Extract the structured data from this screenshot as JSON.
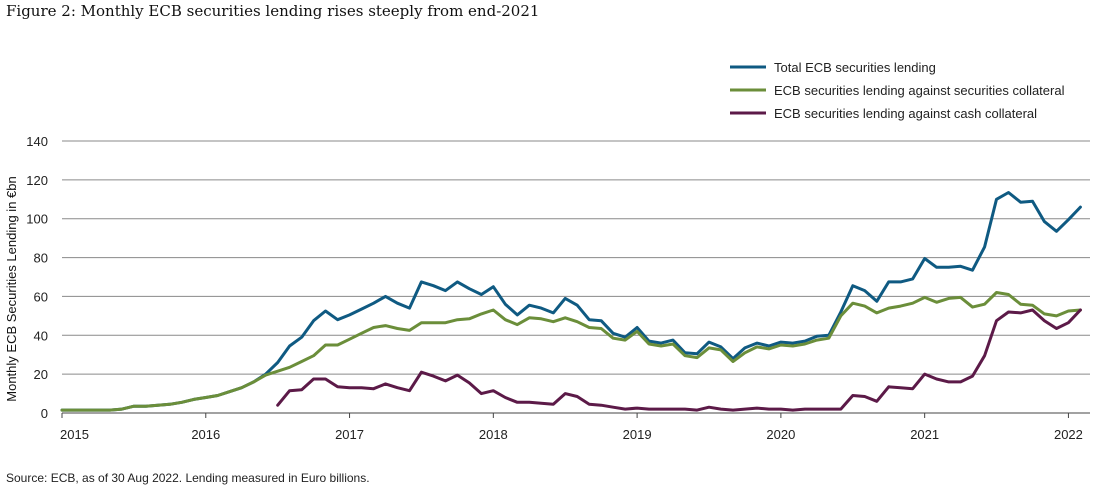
{
  "title": "Figure 2: Monthly ECB securities lending rises steeply from end-2021",
  "source": "Source: ECB, as of 30 Aug 2022. Lending measured in Euro billions.",
  "chart_data": {
    "type": "line",
    "ylabel": "Monthly ECB Securities Lending in €bn",
    "xlabel": "",
    "ylim": [
      0,
      140
    ],
    "yticks": [
      0,
      20,
      40,
      60,
      80,
      100,
      120,
      140
    ],
    "xlim": [
      2015,
      2022.15
    ],
    "xticks": [
      {
        "value": 2015,
        "label": "2015"
      },
      {
        "value": 2016,
        "label": "2016"
      },
      {
        "value": 2017,
        "label": "2017"
      },
      {
        "value": 2018,
        "label": "2018"
      },
      {
        "value": 2019,
        "label": "2019"
      },
      {
        "value": 2020,
        "label": "2020"
      },
      {
        "value": 2021,
        "label": "2021"
      },
      {
        "value": 2022,
        "label": "2022"
      }
    ],
    "grid": "horizontal",
    "legend_position": "top-right",
    "series": [
      {
        "name": "Total ECB securities lending",
        "color": "#0f5a82",
        "points": [
          [
            2015.0,
            1.5
          ],
          [
            2015.083,
            1.5
          ],
          [
            2015.167,
            1.5
          ],
          [
            2015.25,
            1.5
          ],
          [
            2015.333,
            1.5
          ],
          [
            2015.417,
            2
          ],
          [
            2015.5,
            3.5
          ],
          [
            2015.583,
            3.5
          ],
          [
            2015.667,
            4
          ],
          [
            2015.75,
            4.5
          ],
          [
            2015.833,
            5.5
          ],
          [
            2015.917,
            7
          ],
          [
            2016.0,
            8
          ],
          [
            2016.083,
            9
          ],
          [
            2016.167,
            11
          ],
          [
            2016.25,
            13
          ],
          [
            2016.333,
            16
          ],
          [
            2016.417,
            20
          ],
          [
            2016.5,
            26
          ],
          [
            2016.583,
            34.5
          ],
          [
            2016.667,
            39
          ],
          [
            2016.75,
            47.5
          ],
          [
            2016.833,
            52.5
          ],
          [
            2016.917,
            48
          ],
          [
            2017.0,
            50.5
          ],
          [
            2017.083,
            53.5
          ],
          [
            2017.167,
            56.5
          ],
          [
            2017.25,
            60
          ],
          [
            2017.333,
            56.5
          ],
          [
            2017.417,
            54
          ],
          [
            2017.5,
            67.5
          ],
          [
            2017.583,
            65.5
          ],
          [
            2017.667,
            63
          ],
          [
            2017.75,
            67.5
          ],
          [
            2017.833,
            64
          ],
          [
            2017.917,
            61
          ],
          [
            2018.0,
            65
          ],
          [
            2018.083,
            56
          ],
          [
            2018.167,
            50.5
          ],
          [
            2018.25,
            55.5
          ],
          [
            2018.333,
            54
          ],
          [
            2018.417,
            51.5
          ],
          [
            2018.5,
            59
          ],
          [
            2018.583,
            55.5
          ],
          [
            2018.667,
            48
          ],
          [
            2018.75,
            47.5
          ],
          [
            2018.833,
            41
          ],
          [
            2018.917,
            39
          ],
          [
            2019.0,
            44
          ],
          [
            2019.083,
            37
          ],
          [
            2019.167,
            36
          ],
          [
            2019.25,
            37.5
          ],
          [
            2019.333,
            31
          ],
          [
            2019.417,
            30.5
          ],
          [
            2019.5,
            36.5
          ],
          [
            2019.583,
            34
          ],
          [
            2019.667,
            28
          ],
          [
            2019.75,
            33.5
          ],
          [
            2019.833,
            36
          ],
          [
            2019.917,
            34.5
          ],
          [
            2020.0,
            36.5
          ],
          [
            2020.083,
            36
          ],
          [
            2020.167,
            37
          ],
          [
            2020.25,
            39.5
          ],
          [
            2020.333,
            40
          ],
          [
            2020.417,
            52
          ],
          [
            2020.5,
            65.5
          ],
          [
            2020.583,
            63
          ],
          [
            2020.667,
            57.5
          ],
          [
            2020.75,
            67.5
          ],
          [
            2020.833,
            67.5
          ],
          [
            2020.917,
            69
          ],
          [
            2021.0,
            79.5
          ],
          [
            2021.083,
            75
          ],
          [
            2021.167,
            75
          ],
          [
            2021.25,
            75.5
          ],
          [
            2021.333,
            73.5
          ],
          [
            2021.417,
            85.5
          ],
          [
            2021.5,
            110
          ],
          [
            2021.583,
            113.5
          ],
          [
            2021.667,
            108.5
          ],
          [
            2021.75,
            109
          ],
          [
            2021.833,
            98.5
          ],
          [
            2021.917,
            93.5
          ],
          [
            2022.0,
            99.5
          ],
          [
            2022.083,
            106
          ]
        ]
      },
      {
        "name": "ECB securities lending against securities collateral",
        "color": "#6b8e3a",
        "points": [
          [
            2015.0,
            1.5
          ],
          [
            2015.083,
            1.5
          ],
          [
            2015.167,
            1.5
          ],
          [
            2015.25,
            1.5
          ],
          [
            2015.333,
            1.5
          ],
          [
            2015.417,
            2
          ],
          [
            2015.5,
            3.5
          ],
          [
            2015.583,
            3.5
          ],
          [
            2015.667,
            4
          ],
          [
            2015.75,
            4.5
          ],
          [
            2015.833,
            5.5
          ],
          [
            2015.917,
            7
          ],
          [
            2016.0,
            8
          ],
          [
            2016.083,
            9
          ],
          [
            2016.167,
            11
          ],
          [
            2016.25,
            13
          ],
          [
            2016.333,
            16
          ],
          [
            2016.417,
            19.5
          ],
          [
            2016.5,
            21.5
          ],
          [
            2016.583,
            23.5
          ],
          [
            2016.667,
            26.5
          ],
          [
            2016.75,
            29.5
          ],
          [
            2016.833,
            35
          ],
          [
            2016.917,
            35
          ],
          [
            2017.0,
            38
          ],
          [
            2017.083,
            41
          ],
          [
            2017.167,
            44
          ],
          [
            2017.25,
            45
          ],
          [
            2017.333,
            43.5
          ],
          [
            2017.417,
            42.5
          ],
          [
            2017.5,
            46.5
          ],
          [
            2017.583,
            46.5
          ],
          [
            2017.667,
            46.5
          ],
          [
            2017.75,
            48
          ],
          [
            2017.833,
            48.5
          ],
          [
            2017.917,
            51
          ],
          [
            2018.0,
            53
          ],
          [
            2018.083,
            48
          ],
          [
            2018.167,
            45.5
          ],
          [
            2018.25,
            49
          ],
          [
            2018.333,
            48.5
          ],
          [
            2018.417,
            47
          ],
          [
            2018.5,
            49
          ],
          [
            2018.583,
            47
          ],
          [
            2018.667,
            44
          ],
          [
            2018.75,
            43.5
          ],
          [
            2018.833,
            38.5
          ],
          [
            2018.917,
            37.5
          ],
          [
            2019.0,
            42
          ],
          [
            2019.083,
            35.5
          ],
          [
            2019.167,
            34.5
          ],
          [
            2019.25,
            35.5
          ],
          [
            2019.333,
            29.5
          ],
          [
            2019.417,
            28.5
          ],
          [
            2019.5,
            33.5
          ],
          [
            2019.583,
            32.5
          ],
          [
            2019.667,
            26.5
          ],
          [
            2019.75,
            31
          ],
          [
            2019.833,
            34
          ],
          [
            2019.917,
            33
          ],
          [
            2020.0,
            35
          ],
          [
            2020.083,
            34.5
          ],
          [
            2020.167,
            35.5
          ],
          [
            2020.25,
            37.5
          ],
          [
            2020.333,
            38.5
          ],
          [
            2020.417,
            50
          ],
          [
            2020.5,
            56.5
          ],
          [
            2020.583,
            55
          ],
          [
            2020.667,
            51.5
          ],
          [
            2020.75,
            54
          ],
          [
            2020.833,
            55
          ],
          [
            2020.917,
            56.5
          ],
          [
            2021.0,
            59.5
          ],
          [
            2021.083,
            57
          ],
          [
            2021.167,
            59
          ],
          [
            2021.25,
            59.5
          ],
          [
            2021.333,
            54.5
          ],
          [
            2021.417,
            56
          ],
          [
            2021.5,
            62
          ],
          [
            2021.583,
            61
          ],
          [
            2021.667,
            56
          ],
          [
            2021.75,
            55.5
          ],
          [
            2021.833,
            51
          ],
          [
            2021.917,
            50
          ],
          [
            2022.0,
            52.5
          ],
          [
            2022.083,
            53
          ]
        ]
      },
      {
        "name": "ECB securities lending against cash collateral",
        "color": "#5c1a48",
        "points": [
          [
            2016.5,
            4
          ],
          [
            2016.583,
            11.5
          ],
          [
            2016.667,
            12
          ],
          [
            2016.75,
            17.5
          ],
          [
            2016.833,
            17.5
          ],
          [
            2016.917,
            13.5
          ],
          [
            2017.0,
            13
          ],
          [
            2017.083,
            13
          ],
          [
            2017.167,
            12.5
          ],
          [
            2017.25,
            15
          ],
          [
            2017.333,
            13
          ],
          [
            2017.417,
            11.5
          ],
          [
            2017.5,
            21
          ],
          [
            2017.583,
            19
          ],
          [
            2017.667,
            16.5
          ],
          [
            2017.75,
            19.5
          ],
          [
            2017.833,
            15.5
          ],
          [
            2017.917,
            10
          ],
          [
            2018.0,
            11.5
          ],
          [
            2018.083,
            8
          ],
          [
            2018.167,
            5.5
          ],
          [
            2018.25,
            5.5
          ],
          [
            2018.333,
            5
          ],
          [
            2018.417,
            4.5
          ],
          [
            2018.5,
            10
          ],
          [
            2018.583,
            8.5
          ],
          [
            2018.667,
            4.5
          ],
          [
            2018.75,
            4
          ],
          [
            2018.833,
            3
          ],
          [
            2018.917,
            2
          ],
          [
            2019.0,
            2.5
          ],
          [
            2019.083,
            2
          ],
          [
            2019.167,
            2
          ],
          [
            2019.25,
            2
          ],
          [
            2019.333,
            2
          ],
          [
            2019.417,
            1.5
          ],
          [
            2019.5,
            3
          ],
          [
            2019.583,
            2
          ],
          [
            2019.667,
            1.5
          ],
          [
            2019.75,
            2
          ],
          [
            2019.833,
            2.5
          ],
          [
            2019.917,
            2
          ],
          [
            2020.0,
            2
          ],
          [
            2020.083,
            1.5
          ],
          [
            2020.167,
            2
          ],
          [
            2020.25,
            2
          ],
          [
            2020.333,
            2
          ],
          [
            2020.417,
            2
          ],
          [
            2020.5,
            9
          ],
          [
            2020.583,
            8.5
          ],
          [
            2020.667,
            6
          ],
          [
            2020.75,
            13.5
          ],
          [
            2020.833,
            13
          ],
          [
            2020.917,
            12.5
          ],
          [
            2021.0,
            20
          ],
          [
            2021.083,
            17.5
          ],
          [
            2021.167,
            16
          ],
          [
            2021.25,
            16
          ],
          [
            2021.333,
            19
          ],
          [
            2021.417,
            29.5
          ],
          [
            2021.5,
            47.5
          ],
          [
            2021.583,
            52
          ],
          [
            2021.667,
            51.5
          ],
          [
            2021.75,
            53
          ],
          [
            2021.833,
            47.5
          ],
          [
            2021.917,
            43.5
          ],
          [
            2022.0,
            46.5
          ],
          [
            2022.083,
            53
          ]
        ]
      }
    ]
  }
}
